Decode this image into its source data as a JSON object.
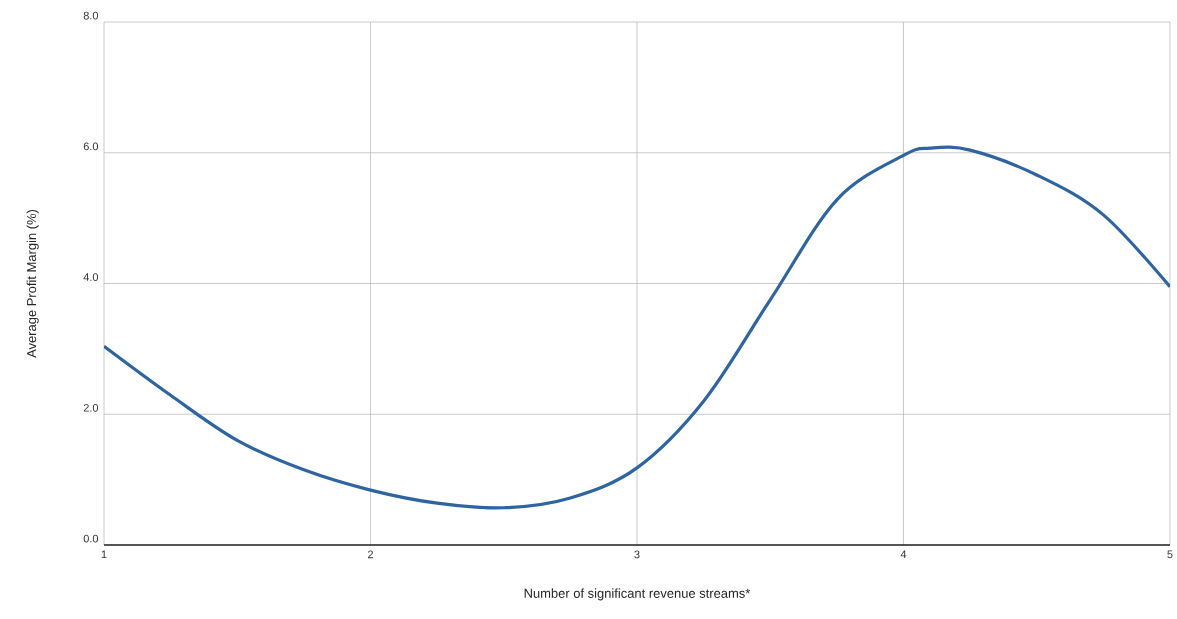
{
  "chart_data": {
    "type": "line",
    "xlabel": "Number of significant revenue streams*",
    "ylabel": "Average Profit Margin (%)",
    "x": [
      1,
      1.25,
      1.5,
      1.75,
      2,
      2.25,
      2.5,
      2.75,
      3,
      3.25,
      3.5,
      3.75,
      4,
      4.1,
      4.25,
      4.5,
      4.75,
      5
    ],
    "series": [
      {
        "color": "#2e64a0",
        "values": [
          3.04,
          2.29,
          1.6,
          1.15,
          0.84,
          0.64,
          0.57,
          0.72,
          1.18,
          2.2,
          3.75,
          5.28,
          5.96,
          6.07,
          6.04,
          5.66,
          5.05,
          3.95
        ]
      }
    ],
    "xlim": [
      1,
      5
    ],
    "xticks": [
      1,
      2,
      3,
      4,
      5
    ],
    "ylim": [
      0,
      8
    ],
    "yticks": [
      {
        "value": 0,
        "label": "0.0"
      },
      {
        "value": 2,
        "label": "2.0"
      },
      {
        "value": 4,
        "label": "4.0"
      },
      {
        "value": 6,
        "label": "6.0"
      },
      {
        "value": 8,
        "label": "8.0"
      }
    ],
    "grid": true,
    "marker": "none",
    "line_style": "solid"
  }
}
